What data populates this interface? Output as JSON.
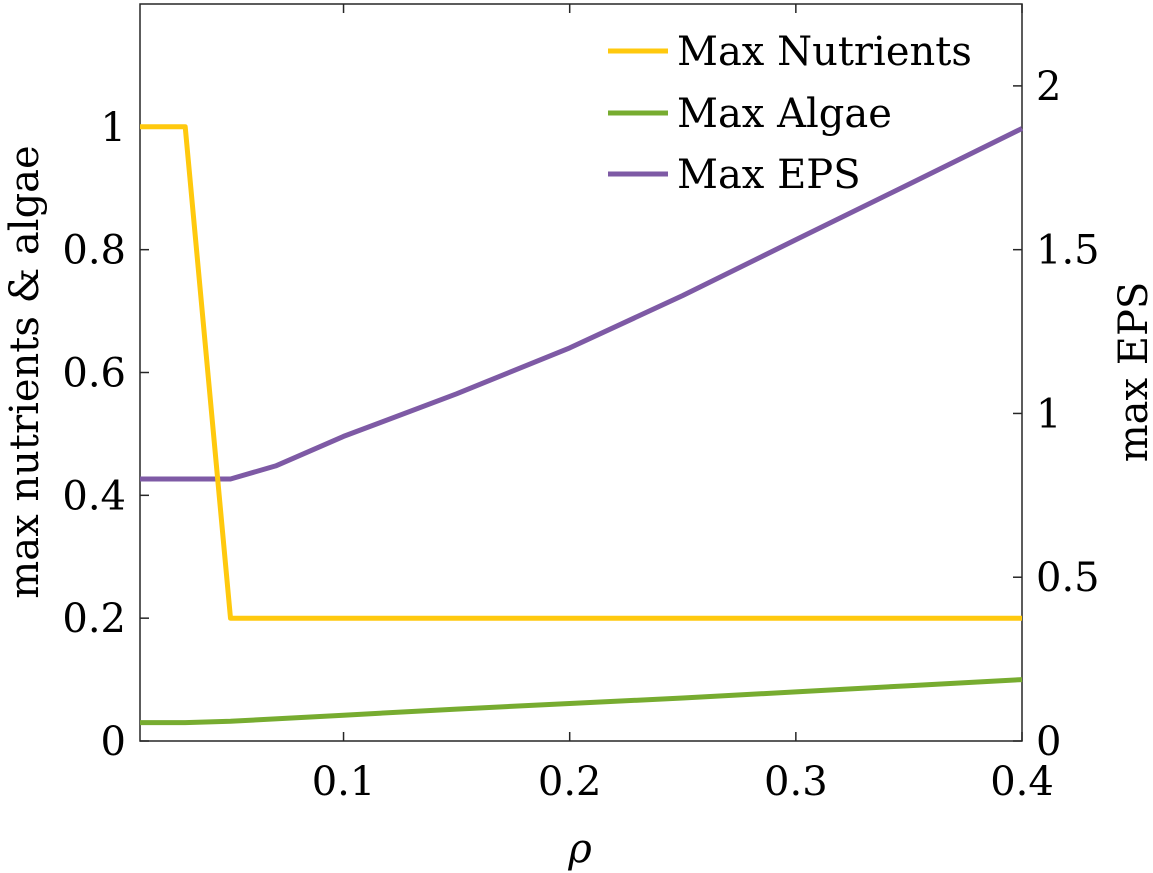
{
  "chart_data": {
    "type": "line",
    "xlabel": "ρ",
    "ylabel_left": "max nutrients & algae",
    "ylabel_right": "max EPS",
    "xlim": [
      0.01,
      0.4
    ],
    "ylim_left": [
      0,
      1.2
    ],
    "ylim_right": [
      0,
      2.25
    ],
    "xticks": [
      0.1,
      0.2,
      0.3,
      0.4
    ],
    "xtick_labels": [
      "0.1",
      "0.2",
      "0.3",
      "0.4"
    ],
    "yticks_left": [
      0,
      0.2,
      0.4,
      0.6,
      0.8,
      1
    ],
    "ytick_labels_left": [
      "0",
      "0.2",
      "0.4",
      "0.6",
      "0.8",
      "1"
    ],
    "yticks_right": [
      0,
      0.5,
      1,
      1.5,
      2
    ],
    "ytick_labels_right": [
      "0",
      "0.5",
      "1",
      "1.5",
      "2"
    ],
    "grid": false,
    "legend_position": "top-right",
    "series": [
      {
        "name": "Max Nutrients",
        "axis": "left",
        "color": "#FFC90E",
        "x": [
          0.01,
          0.03,
          0.05,
          0.1,
          0.2,
          0.3,
          0.4
        ],
        "y": [
          1.0,
          1.0,
          0.2,
          0.2,
          0.2,
          0.2,
          0.2
        ]
      },
      {
        "name": "Max Algae",
        "axis": "left",
        "color": "#77AC30",
        "x": [
          0.01,
          0.03,
          0.05,
          0.1,
          0.15,
          0.2,
          0.25,
          0.3,
          0.35,
          0.4
        ],
        "y": [
          0.03,
          0.03,
          0.032,
          0.042,
          0.052,
          0.061,
          0.07,
          0.08,
          0.09,
          0.1
        ]
      },
      {
        "name": "Max EPS",
        "axis": "right",
        "color": "#7E5AA5",
        "x": [
          0.01,
          0.03,
          0.05,
          0.07,
          0.1,
          0.15,
          0.2,
          0.25,
          0.3,
          0.35,
          0.4
        ],
        "y": [
          0.8,
          0.8,
          0.8,
          0.84,
          0.93,
          1.06,
          1.2,
          1.36,
          1.53,
          1.7,
          1.87
        ]
      }
    ]
  }
}
